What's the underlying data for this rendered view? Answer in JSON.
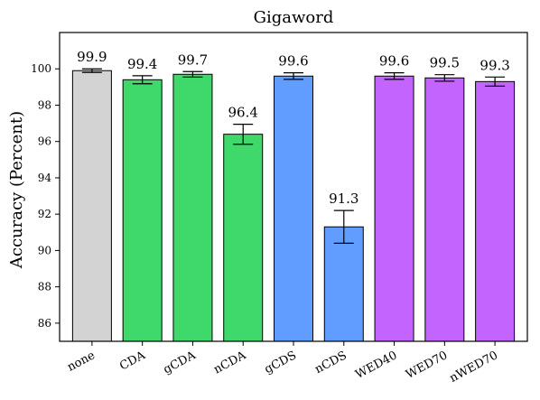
{
  "chart_data": {
    "type": "bar",
    "title": "Gigaword",
    "ylabel": "Accuracy (Percent)",
    "xlabel": "",
    "ylim": [
      85,
      102
    ],
    "yticks": [
      86,
      88,
      90,
      92,
      94,
      96,
      98,
      100
    ],
    "categories": [
      "none",
      "CDA",
      "gCDA",
      "nCDA",
      "gCDS",
      "nCDS",
      "WED40",
      "WED70",
      "nWED70"
    ],
    "values": [
      99.9,
      99.4,
      99.7,
      96.4,
      99.6,
      91.3,
      99.6,
      99.5,
      99.3
    ],
    "value_labels": [
      "99.9",
      "99.4",
      "99.7",
      "96.4",
      "99.6",
      "91.3",
      "99.6",
      "99.5",
      "99.3"
    ],
    "error": [
      0.1,
      0.22,
      0.15,
      0.55,
      0.18,
      0.9,
      0.18,
      0.18,
      0.25
    ],
    "colors": [
      "#d3d3d3",
      "#3fd86a",
      "#3fd86a",
      "#3fd86a",
      "#619cff",
      "#619cff",
      "#c464ff",
      "#c464ff",
      "#c464ff"
    ],
    "grid": false
  }
}
